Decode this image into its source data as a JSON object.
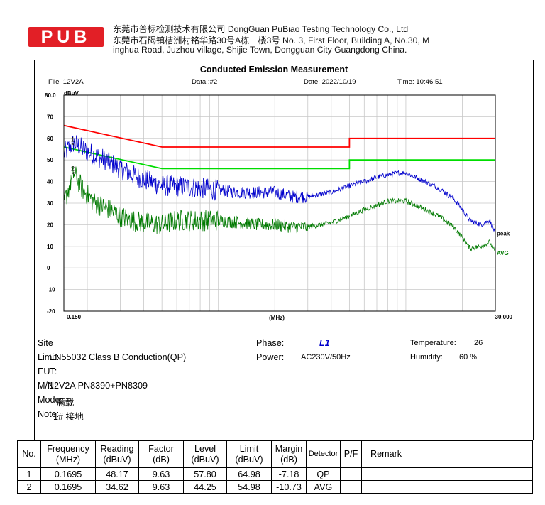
{
  "header": {
    "logo_text": "PUB",
    "logo_color": "#e21f26",
    "line1": "东莞市普标检测技术有限公司 DongGuan PuBiao Testing Technology Co., Ltd",
    "line2": "东莞市石碣镇桔洲村铭华路30号A栋一楼3号 No. 3, First Floor, Building A, No.30, M",
    "line3": "inghua Road, Juzhou village, Shijie Town, Dongguan City Guangdong China."
  },
  "chart_data": {
    "type": "line",
    "title": "Conducted Emission Measurement",
    "file": "File :12V2A",
    "data_no": "Data :#2",
    "date": "Date: 2022/10/19",
    "time": "Time: 10:46:51",
    "ylabel": "dBuV",
    "xlabel": "(MHz)",
    "x_scale": "log",
    "xlim": [
      0.15,
      30
    ],
    "ylim": [
      -20,
      80
    ],
    "x_tick_labels": [
      "0.150",
      "30.000"
    ],
    "y_tick_labels": [
      "80.0",
      "70",
      "60",
      "50",
      "40",
      "30",
      "20",
      "10",
      "0",
      "-10",
      "-20"
    ],
    "grid": true,
    "limit_lines": [
      {
        "name": "QP limit",
        "color": "#ff0000",
        "points": [
          [
            0.15,
            66
          ],
          [
            0.5,
            56
          ],
          [
            5,
            56
          ],
          [
            5,
            60
          ],
          [
            30,
            60
          ]
        ]
      },
      {
        "name": "AVG limit",
        "color": "#00dd00",
        "points": [
          [
            0.15,
            56
          ],
          [
            0.5,
            46
          ],
          [
            5,
            46
          ],
          [
            5,
            50
          ],
          [
            30,
            50
          ]
        ]
      }
    ],
    "series": [
      {
        "name": "peak",
        "color": "#0000cc",
        "x": [
          0.15,
          0.1695,
          0.19,
          0.22,
          0.25,
          0.3,
          0.35,
          0.4,
          0.5,
          0.6,
          0.8,
          1.0,
          1.3,
          1.6,
          2.0,
          2.5,
          3.0,
          4.0,
          5.0,
          6.0,
          7.0,
          8.0,
          9.0,
          10.0,
          12.0,
          15.0,
          18.0,
          20.0,
          22.0,
          25.0,
          28.0,
          30.0
        ],
        "y": [
          53,
          58,
          55,
          52,
          50,
          46,
          43,
          41,
          38,
          38,
          37,
          36,
          35,
          35,
          35,
          33,
          33,
          35,
          38,
          40,
          42,
          43,
          44,
          44,
          41,
          37,
          32,
          27,
          22,
          20,
          22,
          16
        ]
      },
      {
        "name": "AVG",
        "color": "#007a00",
        "x": [
          0.15,
          0.1695,
          0.19,
          0.22,
          0.25,
          0.3,
          0.35,
          0.4,
          0.5,
          0.6,
          0.8,
          1.0,
          1.3,
          1.6,
          2.0,
          2.5,
          3.0,
          4.0,
          5.0,
          6.0,
          7.0,
          8.0,
          9.0,
          10.0,
          12.0,
          15.0,
          18.0,
          20.0,
          22.0,
          25.0,
          28.0,
          30.0
        ],
        "y": [
          30,
          44,
          36,
          30,
          28,
          24,
          22,
          21,
          20,
          22,
          22,
          22,
          21,
          20,
          20,
          19,
          19,
          21,
          24,
          27,
          29,
          31,
          31,
          31,
          28,
          24,
          19,
          14,
          9,
          10,
          12,
          7
        ]
      }
    ],
    "markers": [
      {
        "label": "1",
        "x": 0.1695,
        "y": 57.8
      },
      {
        "label": "2",
        "x": 0.1695,
        "y": 44.25
      }
    ]
  },
  "info": {
    "site_label": "Site",
    "limit_label": "Limit:",
    "limit_value": "EN55032 Class B Conduction(QP)",
    "eut_label": "EUT:",
    "mn_label": "M/N:",
    "mn_value": "12V2A PN8390+PN8309",
    "mode_label": "Mode:",
    "mode_value": "满载",
    "note_label": "Note:",
    "note_value": "1# 接地",
    "phase_label": "Phase:",
    "phase_value": "L1",
    "power_label": "Power:",
    "power_value": "AC230V/50Hz",
    "temp_label": "Temperature:",
    "temp_value": "26",
    "humidity_label": "Humidity:",
    "humidity_value": "60 %"
  },
  "table": {
    "headers": [
      {
        "l1": "No.",
        "l2": ""
      },
      {
        "l1": "Frequency",
        "l2": "(MHz)"
      },
      {
        "l1": "Reading",
        "l2": "(dBuV)"
      },
      {
        "l1": "Factor",
        "l2": "(dB)"
      },
      {
        "l1": "Level",
        "l2": "(dBuV)"
      },
      {
        "l1": "Limit",
        "l2": "(dBuV)"
      },
      {
        "l1": "Margin",
        "l2": "(dB)"
      },
      {
        "l1": "Detector",
        "l2": ""
      },
      {
        "l1": "P/F",
        "l2": ""
      },
      {
        "l1": "Remark",
        "l2": ""
      }
    ],
    "rows": [
      [
        "1",
        "0.1695",
        "48.17",
        "9.63",
        "57.80",
        "64.98",
        "-7.18",
        "QP",
        "",
        ""
      ],
      [
        "2",
        "0.1695",
        "34.62",
        "9.63",
        "44.25",
        "54.98",
        "-10.73",
        "AVG",
        "",
        ""
      ]
    ]
  }
}
